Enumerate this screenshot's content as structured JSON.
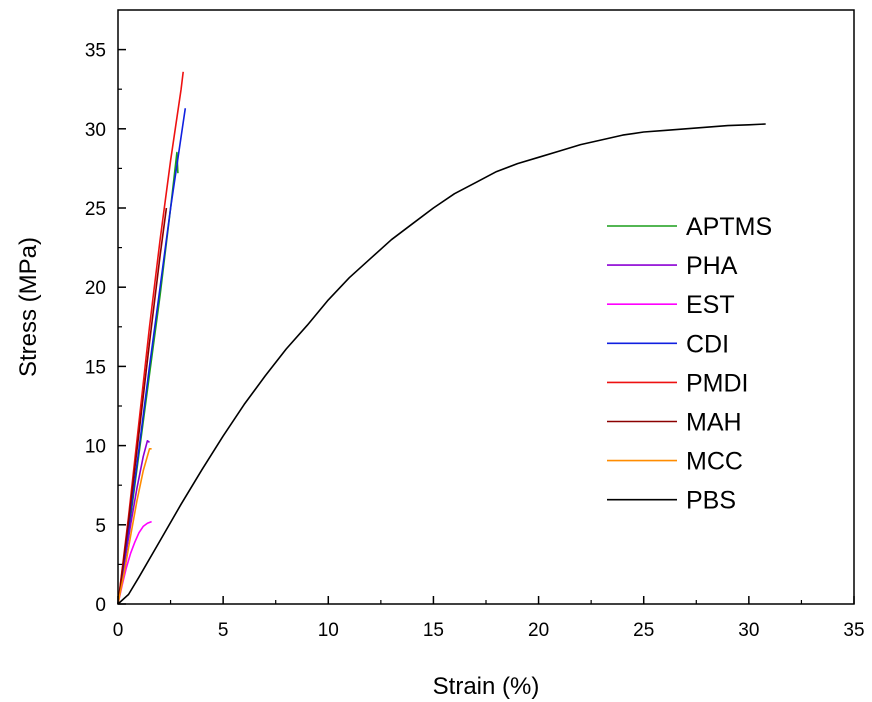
{
  "chart_data": {
    "type": "line",
    "title": "",
    "xlabel": "Strain (%)",
    "ylabel": "Stress (MPa)",
    "xlim": [
      0,
      35
    ],
    "ylim": [
      0,
      37.5
    ],
    "xticks": [
      0,
      5,
      10,
      15,
      20,
      25,
      30,
      35
    ],
    "yticks": [
      0,
      5,
      10,
      15,
      20,
      25,
      30,
      35
    ],
    "xtick_labels": [
      "0",
      "5",
      "10",
      "15",
      "20",
      "25",
      "30",
      "35"
    ],
    "ytick_labels": [
      "0",
      "5",
      "10",
      "15",
      "20",
      "25",
      "30",
      "35"
    ],
    "grid": false,
    "legend_position": "right",
    "series": [
      {
        "name": "APTMS",
        "color": "#1a9e1a",
        "points": [
          [
            0,
            0
          ],
          [
            0.5,
            4.5
          ],
          [
            1.0,
            9.5
          ],
          [
            1.5,
            14.5
          ],
          [
            2.0,
            19.5
          ],
          [
            2.5,
            25.0
          ],
          [
            2.8,
            28.5
          ],
          [
            2.85,
            27.2
          ]
        ]
      },
      {
        "name": "PHA",
        "color": "#8b00d4",
        "points": [
          [
            0,
            0
          ],
          [
            0.3,
            2.5
          ],
          [
            0.6,
            5.0
          ],
          [
            0.9,
            7.3
          ],
          [
            1.2,
            9.3
          ],
          [
            1.4,
            10.3
          ],
          [
            1.5,
            10.2
          ]
        ]
      },
      {
        "name": "EST",
        "color": "#ff00ff",
        "points": [
          [
            0,
            0
          ],
          [
            0.2,
            1.2
          ],
          [
            0.4,
            2.3
          ],
          [
            0.6,
            3.2
          ],
          [
            0.8,
            3.9
          ],
          [
            1.0,
            4.5
          ],
          [
            1.2,
            4.9
          ],
          [
            1.4,
            5.1
          ],
          [
            1.6,
            5.2
          ]
        ]
      },
      {
        "name": "CDI",
        "color": "#1020e0",
        "points": [
          [
            0,
            0
          ],
          [
            0.5,
            4.8
          ],
          [
            1.0,
            9.8
          ],
          [
            1.5,
            15.0
          ],
          [
            2.0,
            20.0
          ],
          [
            2.5,
            25.0
          ],
          [
            3.0,
            29.5
          ],
          [
            3.2,
            31.3
          ]
        ]
      },
      {
        "name": "PMDI",
        "color": "#ee1111",
        "points": [
          [
            0,
            0
          ],
          [
            0.5,
            5.5
          ],
          [
            1.0,
            11.5
          ],
          [
            1.5,
            17.5
          ],
          [
            2.0,
            23.0
          ],
          [
            2.5,
            28.0
          ],
          [
            3.0,
            32.5
          ],
          [
            3.1,
            33.6
          ]
        ]
      },
      {
        "name": "MAH",
        "color": "#8b0000",
        "points": [
          [
            0,
            0
          ],
          [
            0.5,
            5.2
          ],
          [
            1.0,
            10.8
          ],
          [
            1.5,
            16.5
          ],
          [
            2.0,
            22.0
          ],
          [
            2.3,
            25.0
          ]
        ]
      },
      {
        "name": "MCC",
        "color": "#ff8c00",
        "points": [
          [
            0,
            0
          ],
          [
            0.3,
            2.0
          ],
          [
            0.6,
            4.3
          ],
          [
            0.9,
            6.5
          ],
          [
            1.2,
            8.4
          ],
          [
            1.5,
            9.8
          ],
          [
            1.6,
            9.8
          ]
        ]
      },
      {
        "name": "PBS",
        "color": "#000000",
        "points": [
          [
            0,
            0
          ],
          [
            0.5,
            0.6
          ],
          [
            1,
            1.7
          ],
          [
            2,
            4.0
          ],
          [
            3,
            6.3
          ],
          [
            4,
            8.5
          ],
          [
            5,
            10.6
          ],
          [
            6,
            12.6
          ],
          [
            7,
            14.4
          ],
          [
            8,
            16.1
          ],
          [
            9,
            17.6
          ],
          [
            10,
            19.2
          ],
          [
            11,
            20.6
          ],
          [
            12,
            21.8
          ],
          [
            13,
            23.0
          ],
          [
            14,
            24.0
          ],
          [
            15,
            25.0
          ],
          [
            16,
            25.9
          ],
          [
            17,
            26.6
          ],
          [
            18,
            27.3
          ],
          [
            19,
            27.8
          ],
          [
            20,
            28.2
          ],
          [
            21,
            28.6
          ],
          [
            22,
            29.0
          ],
          [
            23,
            29.3
          ],
          [
            24,
            29.6
          ],
          [
            25,
            29.8
          ],
          [
            26,
            29.9
          ],
          [
            27,
            30.0
          ],
          [
            28,
            30.1
          ],
          [
            29,
            30.2
          ],
          [
            30,
            30.25
          ],
          [
            30.8,
            30.3
          ]
        ]
      }
    ]
  }
}
